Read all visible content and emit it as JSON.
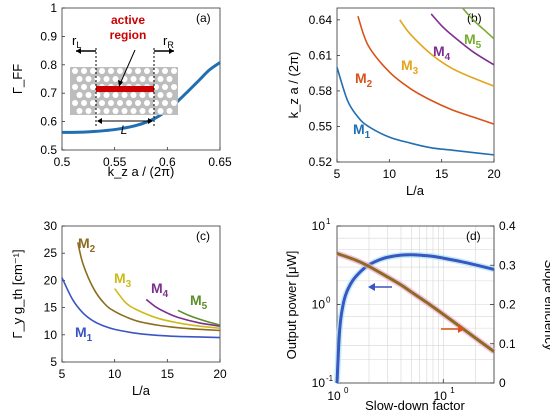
{
  "chart_data": [
    {
      "panel": "(a)",
      "type": "line",
      "xlabel": "k_z a / (2π)",
      "ylabel": "Γ_FF",
      "xlim": [
        0.5,
        0.65
      ],
      "ylim": [
        0.5,
        1.0
      ],
      "xticks": [
        "0.5",
        "0.55",
        "0.6",
        "0.65"
      ],
      "yticks": [
        "0.5",
        "0.6",
        "0.7",
        "0.8",
        "0.9",
        "1"
      ],
      "grid": false,
      "series": [
        {
          "color": "#1f6fb2",
          "x": [
            0.5,
            0.51,
            0.52,
            0.53,
            0.54,
            0.55,
            0.56,
            0.57,
            0.58,
            0.59,
            0.6,
            0.61,
            0.62,
            0.63,
            0.64,
            0.65
          ],
          "y": [
            0.562,
            0.562,
            0.563,
            0.565,
            0.568,
            0.572,
            0.578,
            0.586,
            0.598,
            0.615,
            0.64,
            0.672,
            0.708,
            0.745,
            0.782,
            0.808
          ]
        }
      ],
      "inset": {
        "label_active": "active",
        "label_region": "region",
        "label_rL": "r",
        "label_rL_sub": "L",
        "label_rR": "r",
        "label_rR_sub": "R",
        "label_L": "L",
        "colors": {
          "active": "#cc0000",
          "holes": "#bdbdbd"
        }
      }
    },
    {
      "panel": "(b)",
      "type": "line",
      "xlabel": "L/a",
      "ylabel": "k_z a / (2π)",
      "xlim": [
        5,
        20
      ],
      "ylim": [
        0.52,
        0.65
      ],
      "xticks": [
        "5",
        "10",
        "15",
        "20"
      ],
      "yticks": [
        "0.52",
        "0.55",
        "0.58",
        "0.61",
        "0.64"
      ],
      "grid": false,
      "series": [
        {
          "name": "M1",
          "color": "#1f6fb2",
          "x": [
            5,
            6,
            7,
            8,
            10,
            12,
            14,
            16,
            18,
            20
          ],
          "y": [
            0.6,
            0.572,
            0.558,
            0.55,
            0.541,
            0.536,
            0.532,
            0.53,
            0.528,
            0.526
          ]
        },
        {
          "name": "M2",
          "color": "#d95319",
          "x": [
            7,
            8,
            10,
            12,
            14,
            16,
            18,
            20
          ],
          "y": [
            0.643,
            0.618,
            0.596,
            0.582,
            0.572,
            0.564,
            0.558,
            0.552
          ]
        },
        {
          "name": "M3",
          "color": "#e3a51b",
          "x": [
            11,
            12,
            14,
            16,
            18,
            20
          ],
          "y": [
            0.64,
            0.628,
            0.611,
            0.599,
            0.591,
            0.584
          ]
        },
        {
          "name": "M4",
          "color": "#7e2f8e",
          "x": [
            14,
            15,
            16,
            18,
            20
          ],
          "y": [
            0.645,
            0.635,
            0.627,
            0.613,
            0.602
          ]
        },
        {
          "name": "M5",
          "color": "#77ac30",
          "x": [
            17,
            18,
            19,
            20
          ],
          "y": [
            0.65,
            0.64,
            0.632,
            0.624
          ]
        }
      ],
      "labels": [
        {
          "main": "M",
          "sub": "1",
          "color": "#1f6fb2"
        },
        {
          "main": "M",
          "sub": "2",
          "color": "#d95319"
        },
        {
          "main": "M",
          "sub": "3",
          "color": "#e3a51b"
        },
        {
          "main": "M",
          "sub": "4",
          "color": "#7e2f8e"
        },
        {
          "main": "M",
          "sub": "5",
          "color": "#77ac30"
        }
      ]
    },
    {
      "panel": "(c)",
      "type": "line",
      "xlabel": "L/a",
      "ylabel": "Γ_y g_th [cm⁻¹]",
      "xlim": [
        5,
        20
      ],
      "ylim": [
        5,
        30
      ],
      "xticks": [
        "5",
        "10",
        "15",
        "20"
      ],
      "yticks": [
        "5",
        "10",
        "15",
        "20",
        "25",
        "30"
      ],
      "grid": false,
      "series": [
        {
          "name": "M1",
          "color": "#3a55c4",
          "x": [
            5,
            6,
            7,
            8,
            9,
            10,
            12,
            14,
            16,
            18,
            20
          ],
          "y": [
            20.5,
            16.5,
            14.0,
            12.5,
            11.6,
            11.0,
            10.3,
            9.9,
            9.7,
            9.6,
            9.5
          ]
        },
        {
          "name": "M2",
          "color": "#8c6d1f",
          "x": [
            6.5,
            7,
            8,
            9,
            10,
            12,
            14,
            16,
            18,
            20
          ],
          "y": [
            27.0,
            23.0,
            18.5,
            15.8,
            14.3,
            12.6,
            11.8,
            11.3,
            11.0,
            10.8
          ]
        },
        {
          "name": "M3",
          "color": "#cdbb1a",
          "x": [
            10,
            11,
            12,
            14,
            16,
            18,
            20
          ],
          "y": [
            18.5,
            16.0,
            14.7,
            13.1,
            12.2,
            11.6,
            11.2
          ]
        },
        {
          "name": "M4",
          "color": "#7e2f8e",
          "x": [
            13,
            14,
            15,
            16,
            18,
            20
          ],
          "y": [
            16.5,
            15.0,
            14.0,
            13.2,
            12.2,
            11.6
          ]
        },
        {
          "name": "M5",
          "color": "#5a8f2a",
          "x": [
            16,
            17,
            18,
            19,
            20
          ],
          "y": [
            14.5,
            13.6,
            12.9,
            12.3,
            11.8
          ]
        }
      ],
      "labels": [
        {
          "main": "M",
          "sub": "1",
          "color": "#3a55c4"
        },
        {
          "main": "M",
          "sub": "2",
          "color": "#8c6d1f"
        },
        {
          "main": "M",
          "sub": "3",
          "color": "#cdbb1a"
        },
        {
          "main": "M",
          "sub": "4",
          "color": "#7e2f8e"
        },
        {
          "main": "M",
          "sub": "5",
          "color": "#5a8f2a"
        }
      ]
    },
    {
      "panel": "(d)",
      "type": "line",
      "xlabel": "Slow-down factor",
      "ylabel_left": "Output power [μW]",
      "ylabel_right": "Slope efficiency",
      "xscale": "log",
      "xlim": [
        1,
        30
      ],
      "ylim_left": [
        0.1,
        10
      ],
      "yscale_left": "log",
      "ylim_right": [
        0,
        0.4
      ],
      "xticks": [
        "10^0",
        "10^1"
      ],
      "yticks_left": [
        "10^-1",
        "10^0",
        "10^1"
      ],
      "yticks_right": [
        "0",
        "0.1",
        "0.2",
        "0.3",
        "0.4"
      ],
      "grid": true,
      "series": [
        {
          "axis": "left",
          "color": "#3a55c4",
          "x": [
            1.0,
            1.05,
            1.1,
            1.2,
            1.4,
            1.7,
            2,
            2.5,
            3,
            4,
            5,
            6,
            8,
            10,
            15,
            20,
            30
          ],
          "y": [
            0.1,
            0.4,
            0.75,
            1.3,
            2.0,
            2.7,
            3.2,
            3.7,
            4.0,
            4.25,
            4.3,
            4.25,
            4.1,
            3.9,
            3.5,
            3.2,
            2.8
          ]
        },
        {
          "axis": "right",
          "color": "#8c6d1f",
          "x": [
            1,
            1.5,
            2,
            3,
            4,
            5,
            7,
            10,
            15,
            20,
            30
          ],
          "y": [
            0.33,
            0.313,
            0.297,
            0.27,
            0.25,
            0.232,
            0.205,
            0.175,
            0.14,
            0.115,
            0.08
          ]
        }
      ]
    }
  ]
}
